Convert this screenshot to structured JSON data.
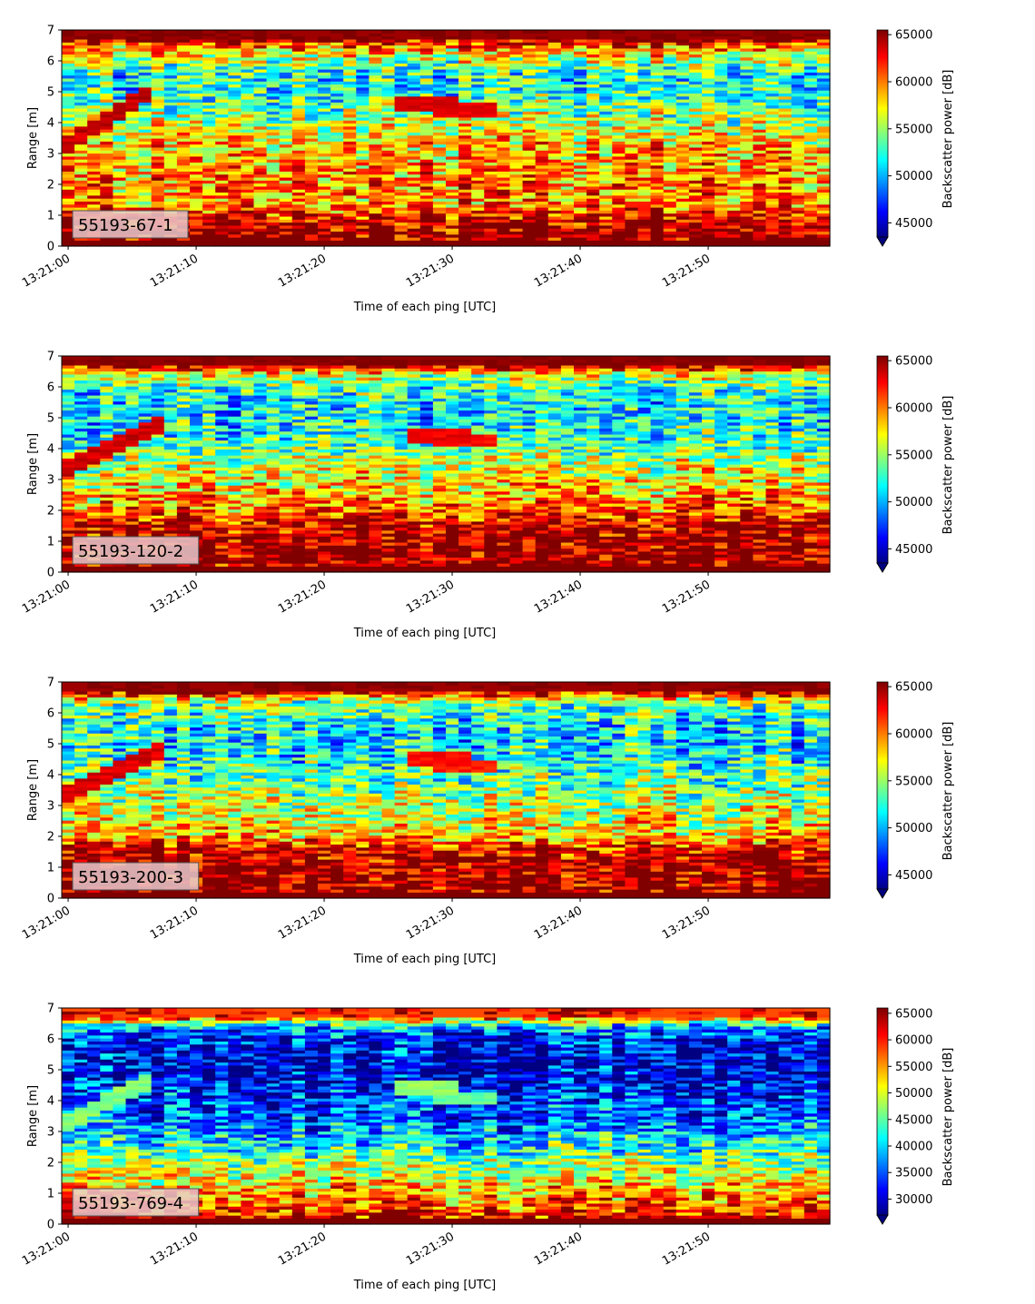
{
  "chart_data": [
    {
      "type": "heatmap",
      "label": "55193-67-1",
      "xlabel": "Time of each ping [UTC]",
      "ylabel": "Range [m]",
      "ylim": [
        0,
        7
      ],
      "yticks": [
        "0",
        "1",
        "2",
        "3",
        "4",
        "5",
        "6",
        "7"
      ],
      "xticks": [
        "13:21:00",
        "13:21:10",
        "13:21:20",
        "13:21:30",
        "13:21:40",
        "13:21:50"
      ],
      "x_start": "13:21:00",
      "x_end": "13:21:59",
      "colorbar": {
        "label": "Backscatter power [dB]",
        "colormap": "jet",
        "extend": "min",
        "range": [
          43500,
          65500
        ],
        "ticks": [
          "45000",
          "50000",
          "55000",
          "60000",
          "65000"
        ],
        "tick_values": [
          45000,
          50000,
          55000,
          60000,
          65000
        ]
      },
      "profile": [
        {
          "range": 0.3,
          "level": 0.98
        },
        {
          "range": 0.7,
          "level": 0.97
        },
        {
          "range": 1.1,
          "level": 0.82
        },
        {
          "range": 1.5,
          "level": 0.72
        },
        {
          "range": 2.0,
          "level": 0.76
        },
        {
          "range": 2.5,
          "level": 0.74
        },
        {
          "range": 3.0,
          "level": 0.7
        },
        {
          "range": 3.5,
          "level": 0.66
        },
        {
          "range": 4.0,
          "level": 0.56
        },
        {
          "range": 4.5,
          "level": 0.48
        },
        {
          "range": 5.0,
          "level": 0.42
        },
        {
          "range": 5.5,
          "level": 0.4
        },
        {
          "range": 6.0,
          "level": 0.55
        },
        {
          "range": 6.4,
          "level": 0.72
        },
        {
          "range": 6.7,
          "level": 0.97
        }
      ],
      "school_track": {
        "t_start": 0,
        "t_end": 6,
        "range_start": 3.3,
        "range_end": 4.9,
        "level": 0.97
      },
      "features": [
        {
          "t": 28,
          "range": 4.6,
          "level": 0.95
        },
        {
          "t": 31,
          "range": 4.4,
          "level": 0.93
        }
      ]
    },
    {
      "type": "heatmap",
      "label": "55193-120-2",
      "xlabel": "Time of each ping [UTC]",
      "ylabel": "Range [m]",
      "ylim": [
        0,
        7
      ],
      "yticks": [
        "0",
        "1",
        "2",
        "3",
        "4",
        "5",
        "6",
        "7"
      ],
      "xticks": [
        "13:21:00",
        "13:21:10",
        "13:21:20",
        "13:21:30",
        "13:21:40",
        "13:21:50"
      ],
      "x_start": "13:21:00",
      "x_end": "13:21:59",
      "colorbar": {
        "label": "Backscatter power [dB]",
        "colormap": "jet",
        "extend": "min",
        "range": [
          43500,
          65500
        ],
        "ticks": [
          "45000",
          "50000",
          "55000",
          "60000",
          "65000"
        ],
        "tick_values": [
          45000,
          50000,
          55000,
          60000,
          65000
        ]
      },
      "profile": [
        {
          "range": 0.3,
          "level": 0.98
        },
        {
          "range": 0.7,
          "level": 0.98
        },
        {
          "range": 1.1,
          "level": 0.97
        },
        {
          "range": 1.5,
          "level": 0.92
        },
        {
          "range": 2.0,
          "level": 0.78
        },
        {
          "range": 2.5,
          "level": 0.7
        },
        {
          "range": 3.0,
          "level": 0.64
        },
        {
          "range": 3.5,
          "level": 0.56
        },
        {
          "range": 4.0,
          "level": 0.46
        },
        {
          "range": 4.5,
          "level": 0.4
        },
        {
          "range": 5.0,
          "level": 0.36
        },
        {
          "range": 5.5,
          "level": 0.36
        },
        {
          "range": 6.0,
          "level": 0.44
        },
        {
          "range": 6.4,
          "level": 0.58
        },
        {
          "range": 6.7,
          "level": 0.98
        }
      ],
      "school_track": {
        "t_start": 0,
        "t_end": 7,
        "range_start": 3.4,
        "range_end": 4.8,
        "level": 0.96
      },
      "features": [
        {
          "t": 29,
          "range": 4.4,
          "level": 0.92
        },
        {
          "t": 31,
          "range": 4.3,
          "level": 0.9
        }
      ]
    },
    {
      "type": "heatmap",
      "label": "55193-200-3",
      "xlabel": "Time of each ping [UTC]",
      "ylabel": "Range [m]",
      "ylim": [
        0,
        7
      ],
      "yticks": [
        "0",
        "1",
        "2",
        "3",
        "4",
        "5",
        "6",
        "7"
      ],
      "xticks": [
        "13:21:00",
        "13:21:10",
        "13:21:20",
        "13:21:30",
        "13:21:40",
        "13:21:50"
      ],
      "x_start": "13:21:00",
      "x_end": "13:21:59",
      "colorbar": {
        "label": "Backscatter power [dB]",
        "colormap": "jet",
        "extend": "min",
        "range": [
          43500,
          65500
        ],
        "ticks": [
          "45000",
          "50000",
          "55000",
          "60000",
          "65000"
        ],
        "tick_values": [
          45000,
          50000,
          55000,
          60000,
          65000
        ]
      },
      "profile": [
        {
          "range": 0.3,
          "level": 0.98
        },
        {
          "range": 0.7,
          "level": 0.98
        },
        {
          "range": 1.1,
          "level": 0.97
        },
        {
          "range": 1.5,
          "level": 0.94
        },
        {
          "range": 2.0,
          "level": 0.7
        },
        {
          "range": 2.5,
          "level": 0.62
        },
        {
          "range": 3.0,
          "level": 0.58
        },
        {
          "range": 3.5,
          "level": 0.52
        },
        {
          "range": 4.0,
          "level": 0.46
        },
        {
          "range": 4.5,
          "level": 0.4
        },
        {
          "range": 5.0,
          "level": 0.36
        },
        {
          "range": 5.5,
          "level": 0.38
        },
        {
          "range": 6.0,
          "level": 0.44
        },
        {
          "range": 6.4,
          "level": 0.55
        },
        {
          "range": 6.7,
          "level": 0.97
        }
      ],
      "school_track": {
        "t_start": 0,
        "t_end": 7,
        "range_start": 3.4,
        "range_end": 4.8,
        "level": 0.95
      },
      "features": [
        {
          "t": 29,
          "range": 4.5,
          "level": 0.9
        },
        {
          "t": 31,
          "range": 4.3,
          "level": 0.88
        }
      ]
    },
    {
      "type": "heatmap",
      "label": "55193-769-4",
      "xlabel": "Time of each ping [UTC]",
      "ylabel": "Range [m]",
      "ylim": [
        0,
        7
      ],
      "yticks": [
        "0",
        "1",
        "2",
        "3",
        "4",
        "5",
        "6",
        "7"
      ],
      "xticks": [
        "13:21:00",
        "13:21:10",
        "13:21:20",
        "13:21:30",
        "13:21:40",
        "13:21:50"
      ],
      "x_start": "13:21:00",
      "x_end": "13:21:59",
      "colorbar": {
        "label": "Backscatter power [dB]",
        "colormap": "jet",
        "extend": "min",
        "range": [
          27000,
          66000
        ],
        "ticks": [
          "30000",
          "35000",
          "40000",
          "45000",
          "50000",
          "55000",
          "60000",
          "65000"
        ],
        "tick_values": [
          30000,
          35000,
          40000,
          45000,
          50000,
          55000,
          60000,
          65000
        ]
      },
      "profile": [
        {
          "range": 0.3,
          "level": 0.9
        },
        {
          "range": 0.7,
          "level": 0.78
        },
        {
          "range": 1.1,
          "level": 0.72
        },
        {
          "range": 1.5,
          "level": 0.62
        },
        {
          "range": 2.0,
          "level": 0.52
        },
        {
          "range": 2.5,
          "level": 0.4
        },
        {
          "range": 3.0,
          "level": 0.3
        },
        {
          "range": 3.5,
          "level": 0.22
        },
        {
          "range": 4.0,
          "level": 0.18
        },
        {
          "range": 4.5,
          "level": 0.14
        },
        {
          "range": 5.0,
          "level": 0.1
        },
        {
          "range": 5.5,
          "level": 0.1
        },
        {
          "range": 6.0,
          "level": 0.14
        },
        {
          "range": 6.4,
          "level": 0.3
        },
        {
          "range": 6.7,
          "level": 0.8
        }
      ],
      "school_track": {
        "t_start": 0,
        "t_end": 6,
        "range_start": 3.3,
        "range_end": 4.6,
        "level": 0.55
      },
      "features": [
        {
          "t": 28,
          "range": 4.4,
          "level": 0.55
        },
        {
          "t": 31,
          "range": 4.1,
          "level": 0.5
        }
      ]
    }
  ]
}
